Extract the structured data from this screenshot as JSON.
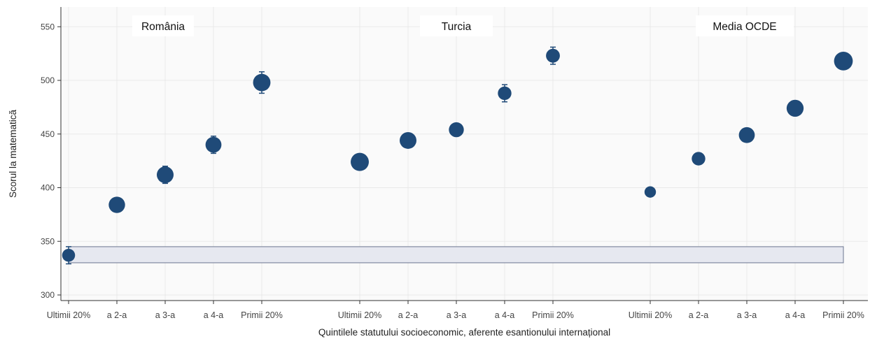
{
  "chart_data": {
    "type": "scatter",
    "xlabel": "Quintilele statutului socioeconomic, aferente esantionului internațional",
    "ylabel": "Scorul la matematică",
    "ylim": [
      295,
      568
    ],
    "yticks": [
      300,
      350,
      400,
      450,
      500,
      550
    ],
    "grid": true,
    "groups": [
      {
        "name": "România",
        "categories": [
          "Ultimii 20%",
          "a 2-a",
          "a 3-a",
          "a 4-a",
          "Primii 20%"
        ],
        "values": [
          337,
          384,
          412,
          440,
          498
        ],
        "error": [
          8,
          4,
          8,
          8,
          10
        ],
        "share": [
          0.1,
          0.23,
          0.25,
          0.21,
          0.28
        ]
      },
      {
        "name": "Turcia",
        "categories": [
          "Ultimii 20%",
          "a 2-a",
          "a 3-a",
          "a 4-a",
          "Primii 20%"
        ],
        "values": [
          424,
          444,
          454,
          488,
          523
        ],
        "error": [
          6,
          6,
          6,
          8,
          8
        ],
        "share": [
          0.32,
          0.25,
          0.17,
          0.12,
          0.13
        ]
      },
      {
        "name": "Media OCDE",
        "categories": [
          "Ultimii 20%",
          "a 2-a",
          "a 3-a",
          "a 4-a",
          "Primii 20%"
        ],
        "values": [
          396,
          427,
          449,
          474,
          518
        ],
        "error": [
          2,
          2,
          2,
          2,
          2
        ],
        "share": [
          0.06,
          0.12,
          0.21,
          0.26,
          0.35
        ]
      }
    ],
    "highlight_band": [
      330,
      345
    ]
  },
  "colors": {
    "marker": "#1f4a78",
    "band_fill": "#e6e8f0",
    "band_stroke": "#6b7590",
    "plot_background": "#fafafa"
  }
}
